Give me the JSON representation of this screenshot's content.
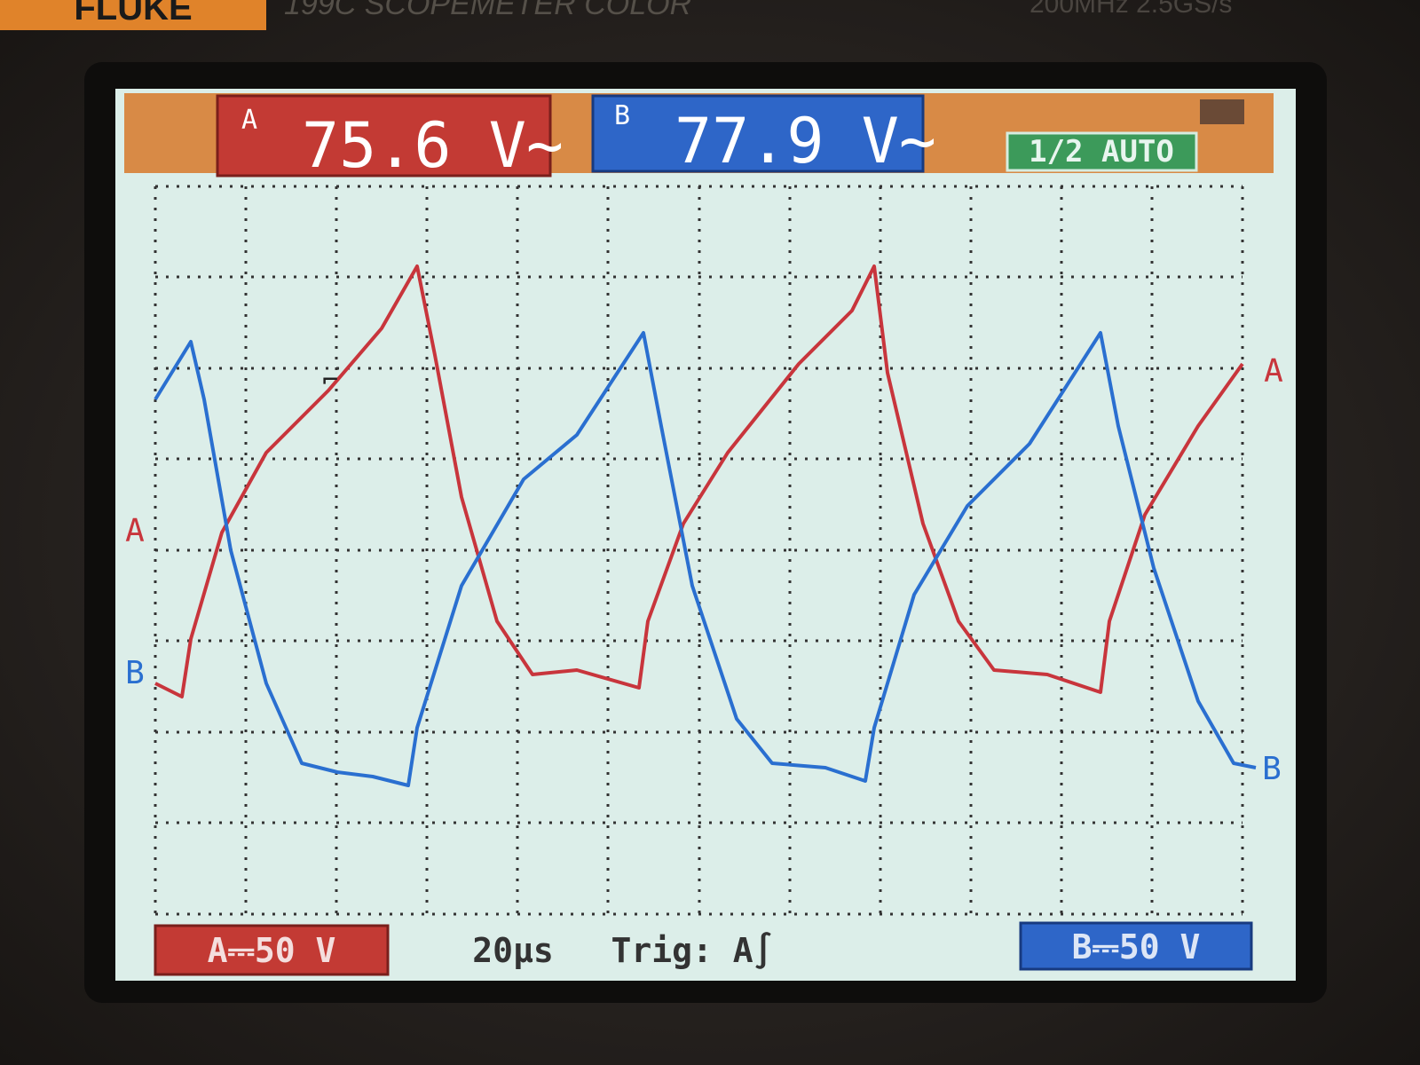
{
  "device": {
    "brand": "FLUKE",
    "model": "199C SCOPEMETER COLOR",
    "spec": "200MHz 2.5GS/s"
  },
  "header": {
    "channel_a": {
      "label": "A",
      "reading": "75.6 V~"
    },
    "channel_b": {
      "label": "B",
      "reading": "77.9 V~"
    },
    "mode": "1/2 AUTO"
  },
  "traces": {
    "a_left": "A",
    "b_left": "B",
    "a_right": "A",
    "b_right": "B"
  },
  "footer": {
    "channel_a_scale": "A⎓50 V",
    "timebase": "20µs",
    "trigger": "Trig: A∫",
    "channel_b_scale": "B⎓50 V"
  }
}
